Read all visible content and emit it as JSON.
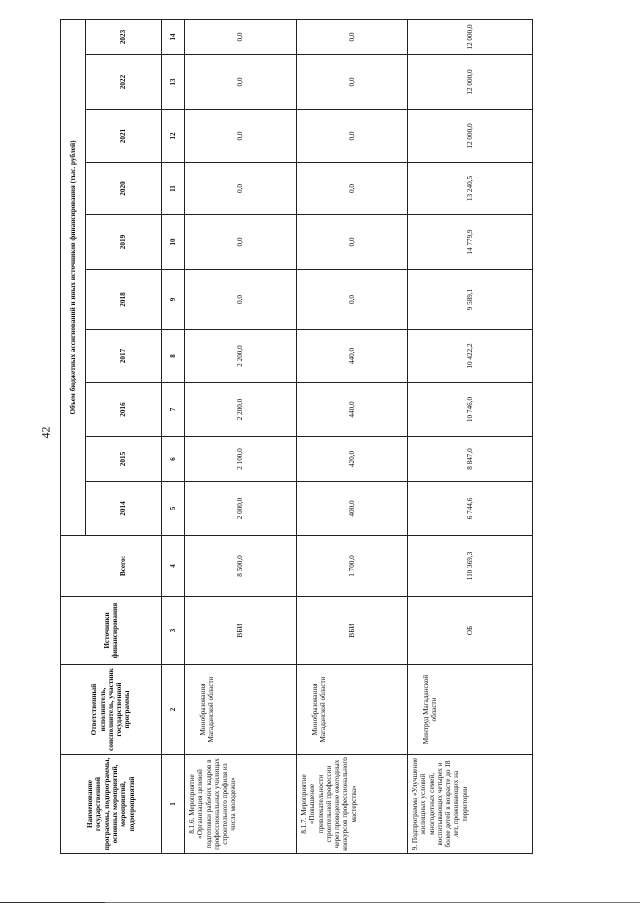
{
  "page_number": "42",
  "table": {
    "headers": {
      "name": "Наименование государственной программы, подпрограммы, основных мероприятий, мероприятий, подмероприятий",
      "executor": "Ответственный исполнитель, соисполнитель, участник государственной программы",
      "source": "Источники финансирования",
      "funding_title": "Объем бюджетных ассигнований и иных источников финансирования (тыс. рублей)",
      "total": "Всего:",
      "years": [
        "2014",
        "2015",
        "2016",
        "2017",
        "2018",
        "2019",
        "2020",
        "2021",
        "2022",
        "2023"
      ]
    },
    "column_numbers": [
      "1",
      "2",
      "3",
      "4",
      "5",
      "6",
      "7",
      "8",
      "9",
      "10",
      "11",
      "12",
      "13",
      "14"
    ],
    "rows": [
      {
        "name": "8.1.6. Мероприятие «Организация целевой подготовки рабочих кадров в профессиональных училищах строительного профиля из числа молодежи»",
        "executor": "Минобразования Магаданской области",
        "source": "ВБИ",
        "total": "8 500,0",
        "values": [
          "2 000,0",
          "2 100,0",
          "2 200,0",
          "2 200,0",
          "0,0",
          "0,0",
          "0,0",
          "0,0",
          "0,0",
          "0,0"
        ]
      },
      {
        "name": "8.1.7. Мероприятие «Повышение привлекательности строительной профессии через проведение ежегодных конкурсов профессионального мастерства»",
        "executor": "Минобразования Магаданской области",
        "source": "ВБИ",
        "total": "1 700,0",
        "values": [
          "400,0",
          "420,0",
          "440,0",
          "440,0",
          "0,0",
          "0,0",
          "0,0",
          "0,0",
          "0,0",
          "0,0"
        ]
      },
      {
        "name": "9. Подпрограмма «Улучшение жилищных условий многодетных семей, воспитывающих четырех и более детей в возрасте до 18 лет, проживающих на территории",
        "executor": "Минтруд Магаданской области",
        "source": "ОБ",
        "total": "110 369,3",
        "values": [
          "6 744,6",
          "8 847,0",
          "10 746,0",
          "10 422,2",
          "9 589,1",
          "14 779,9",
          "13 240,5",
          "12 000,0",
          "12 000,0",
          "12 000,0"
        ]
      }
    ]
  }
}
